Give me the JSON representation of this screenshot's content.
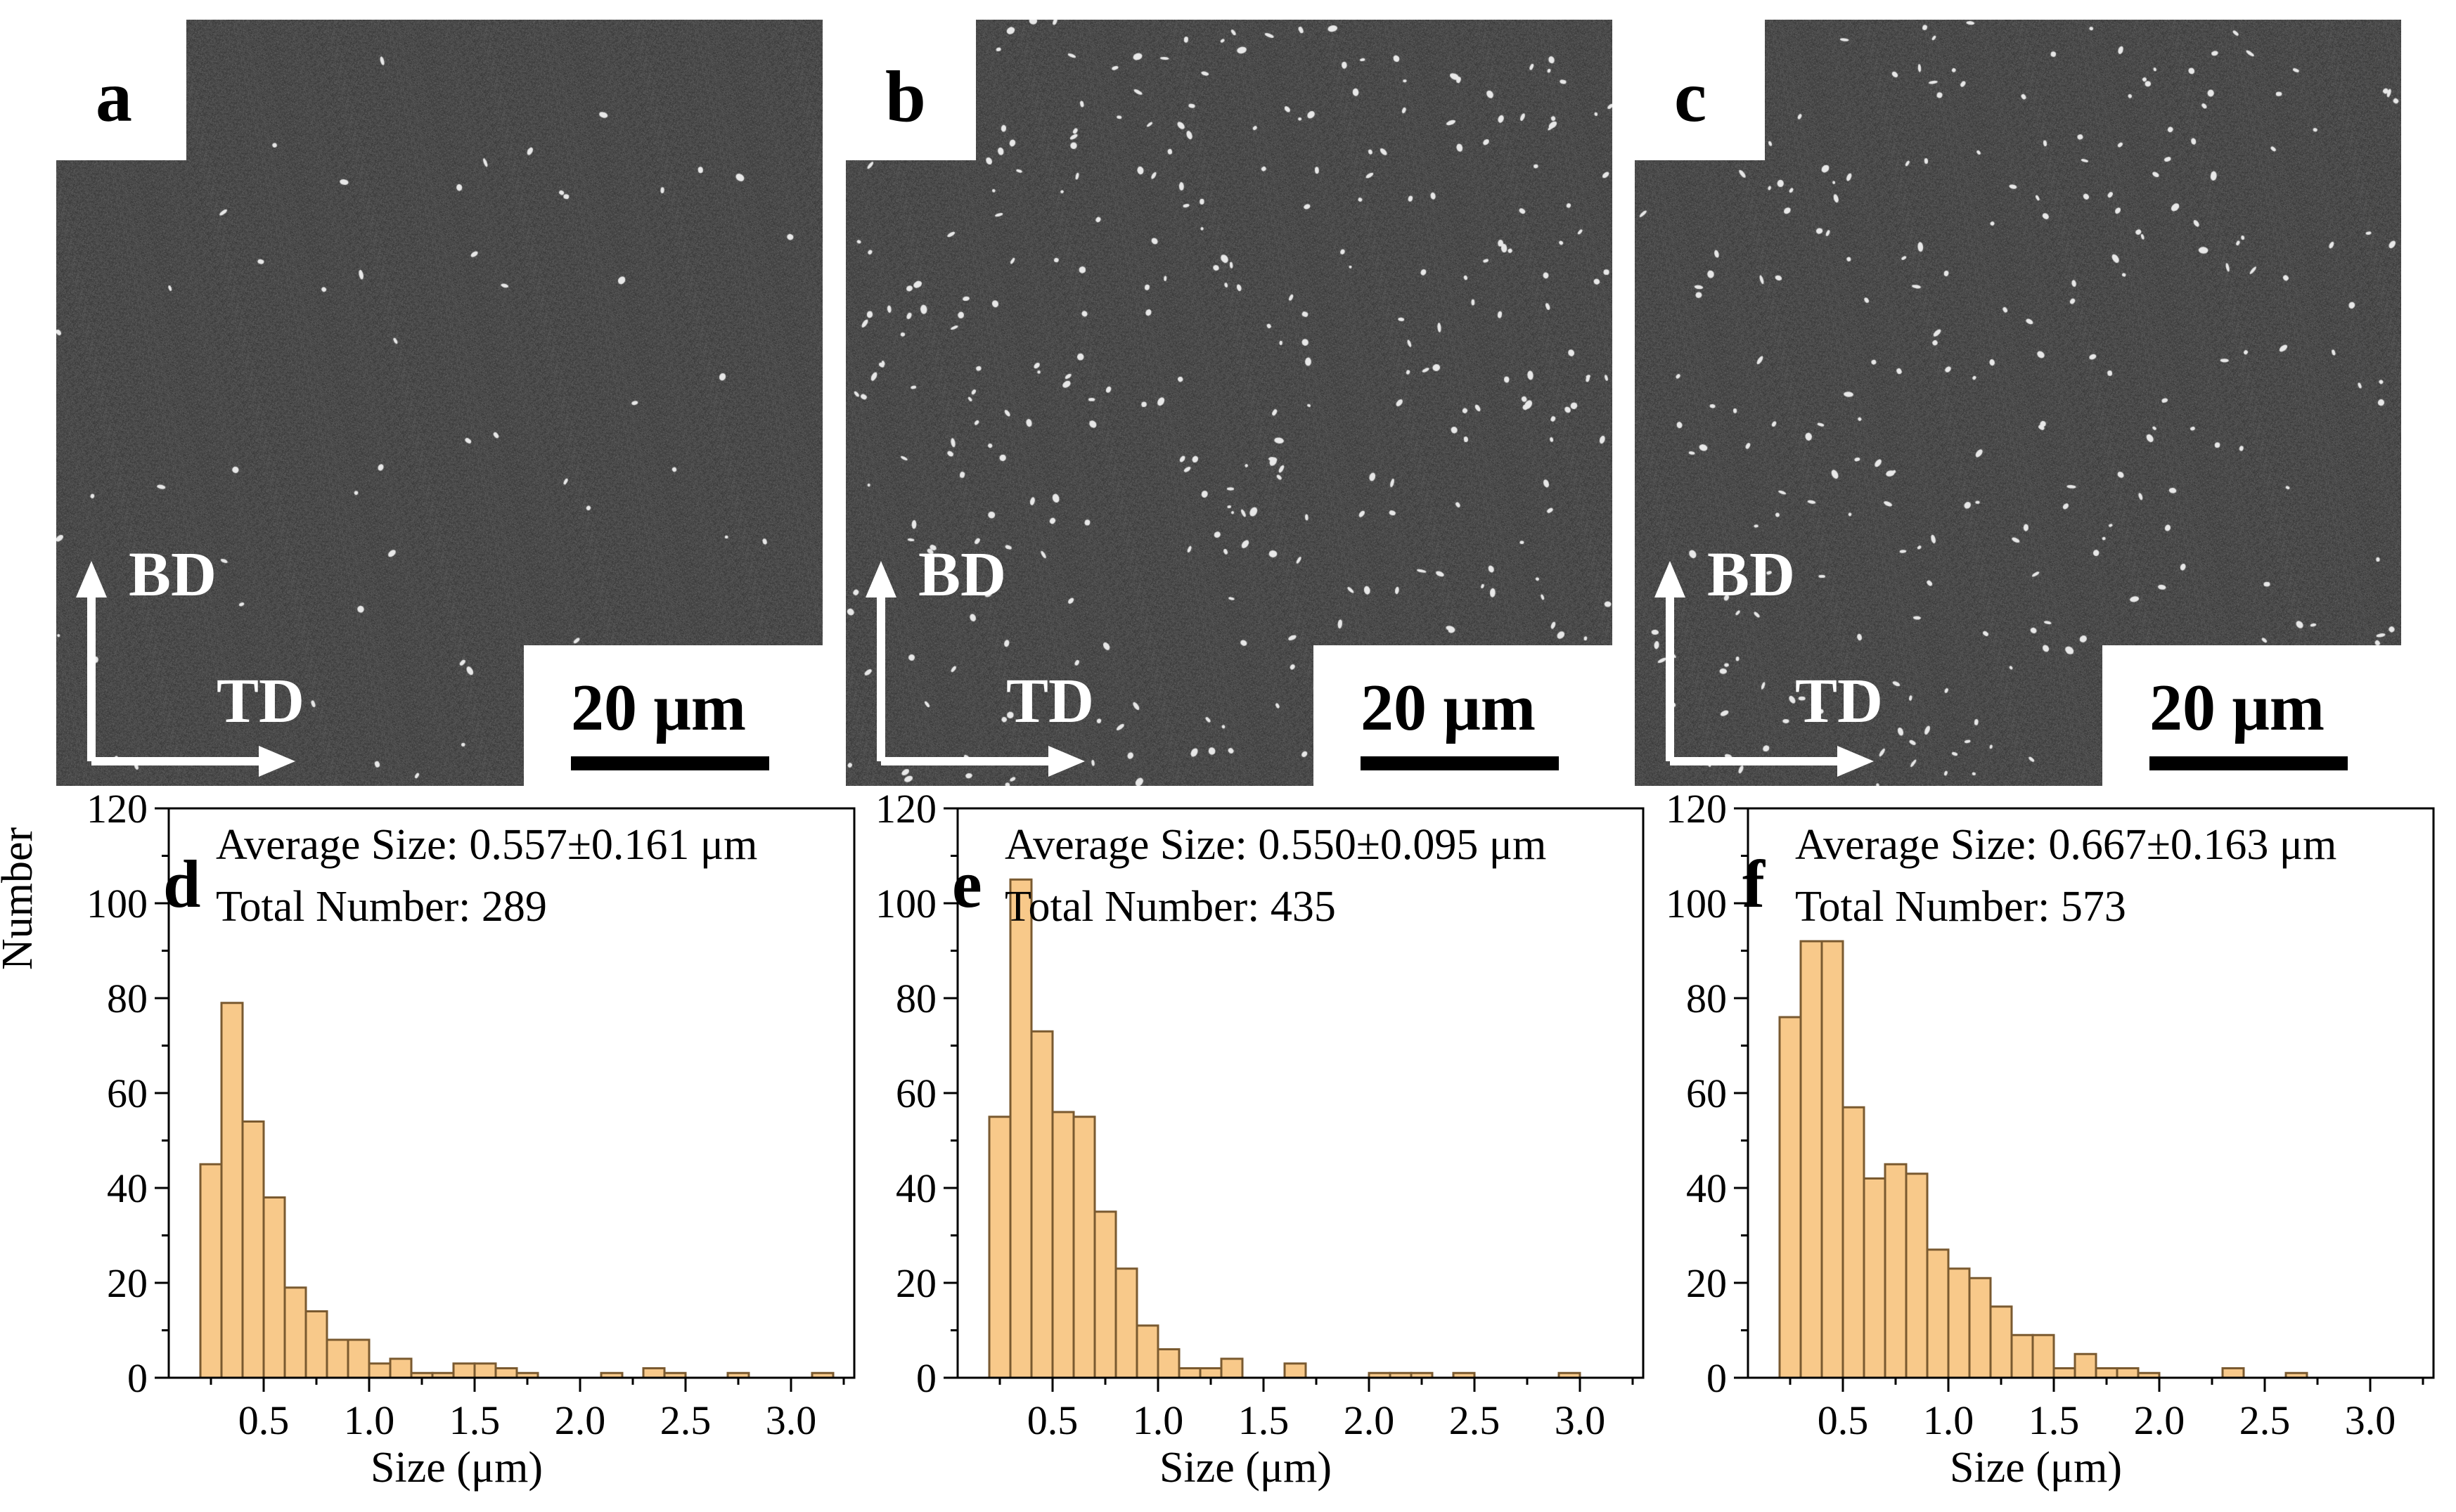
{
  "figure": {
    "sem_panels": [
      {
        "letter": "a",
        "scale_bar": "20 μm",
        "axis_up": "BD",
        "axis_right": "TD"
      },
      {
        "letter": "b",
        "scale_bar": "20 μm",
        "axis_up": "BD",
        "axis_right": "TD"
      },
      {
        "letter": "c",
        "scale_bar": "20 μm",
        "axis_up": "BD",
        "axis_right": "TD"
      }
    ],
    "shared_ylabel": "Number"
  },
  "colors": {
    "bar_fill": "#f8c98a",
    "bar_stroke": "#7a5a30",
    "sem_background": "#3b3b3b"
  },
  "chart_data": [
    {
      "type": "bar",
      "panel": "d",
      "annotation_lines": [
        "Average Size: 0.557±0.161 μm",
        "Total Number: 289"
      ],
      "xlabel": "Size (μm)",
      "ylabel": "Number",
      "xlim": [
        0.05,
        3.3
      ],
      "ylim": [
        0,
        120
      ],
      "xticks": [
        0.5,
        1.0,
        1.5,
        2.0,
        2.5,
        3.0
      ],
      "xtick_labels": [
        "0.5",
        "1.0",
        "1.5",
        "2.0",
        "2.5",
        "3.0"
      ],
      "yticks": [
        0,
        20,
        40,
        60,
        80,
        100,
        120
      ],
      "bin_width": 0.1,
      "bin_centers": [
        0.25,
        0.35,
        0.45,
        0.55,
        0.65,
        0.75,
        0.85,
        0.95,
        1.05,
        1.15,
        1.25,
        1.35,
        1.45,
        1.55,
        1.65,
        1.75,
        1.85,
        1.95,
        2.05,
        2.15,
        2.25,
        2.35,
        2.45,
        2.55,
        2.65,
        2.75,
        2.85,
        2.95,
        3.05,
        3.15
      ],
      "values": [
        45,
        79,
        54,
        38,
        19,
        14,
        8,
        8,
        3,
        4,
        1,
        1,
        3,
        3,
        2,
        1,
        0,
        0,
        0,
        1,
        0,
        2,
        1,
        0,
        0,
        1,
        0,
        0,
        0,
        1
      ]
    },
    {
      "type": "bar",
      "panel": "e",
      "annotation_lines": [
        "Average Size: 0.550±0.095 μm",
        "Total Number: 435"
      ],
      "xlabel": "Size (μm)",
      "ylabel": "",
      "xlim": [
        0.05,
        3.3
      ],
      "ylim": [
        0,
        120
      ],
      "xticks": [
        0.5,
        1.0,
        1.5,
        2.0,
        2.5,
        3.0
      ],
      "xtick_labels": [
        "0.5",
        "1.0",
        "1.5",
        "2.0",
        "2.5",
        "3.0"
      ],
      "yticks": [
        0,
        20,
        40,
        60,
        80,
        100,
        120
      ],
      "bin_width": 0.1,
      "bin_centers": [
        0.25,
        0.35,
        0.45,
        0.55,
        0.65,
        0.75,
        0.85,
        0.95,
        1.05,
        1.15,
        1.25,
        1.35,
        1.45,
        1.55,
        1.65,
        1.75,
        1.85,
        1.95,
        2.05,
        2.15,
        2.25,
        2.35,
        2.45,
        2.55,
        2.65,
        2.75,
        2.85,
        2.95
      ],
      "values": [
        55,
        105,
        73,
        56,
        55,
        35,
        23,
        11,
        6,
        2,
        2,
        4,
        0,
        0,
        3,
        0,
        0,
        0,
        1,
        1,
        1,
        0,
        1,
        0,
        0,
        0,
        0,
        1
      ]
    },
    {
      "type": "bar",
      "panel": "f",
      "annotation_lines": [
        "Average Size: 0.667±0.163 μm",
        "Total Number: 573"
      ],
      "xlabel": "Size (μm)",
      "ylabel": "",
      "xlim": [
        0.05,
        3.3
      ],
      "ylim": [
        0,
        120
      ],
      "xticks": [
        0.5,
        1.0,
        1.5,
        2.0,
        2.5,
        3.0
      ],
      "xtick_labels": [
        "0.5",
        "1.0",
        "1.5",
        "2.0",
        "2.5",
        "3.0"
      ],
      "yticks": [
        0,
        20,
        40,
        60,
        80,
        100,
        120
      ],
      "bin_width": 0.1,
      "bin_centers": [
        0.25,
        0.35,
        0.45,
        0.55,
        0.65,
        0.75,
        0.85,
        0.95,
        1.05,
        1.15,
        1.25,
        1.35,
        1.45,
        1.55,
        1.65,
        1.75,
        1.85,
        1.95,
        2.05,
        2.15,
        2.25,
        2.35,
        2.45,
        2.55,
        2.65
      ],
      "values": [
        76,
        92,
        92,
        57,
        42,
        45,
        43,
        27,
        23,
        21,
        15,
        9,
        9,
        2,
        5,
        2,
        2,
        1,
        0,
        0,
        0,
        2,
        0,
        0,
        1
      ]
    }
  ]
}
